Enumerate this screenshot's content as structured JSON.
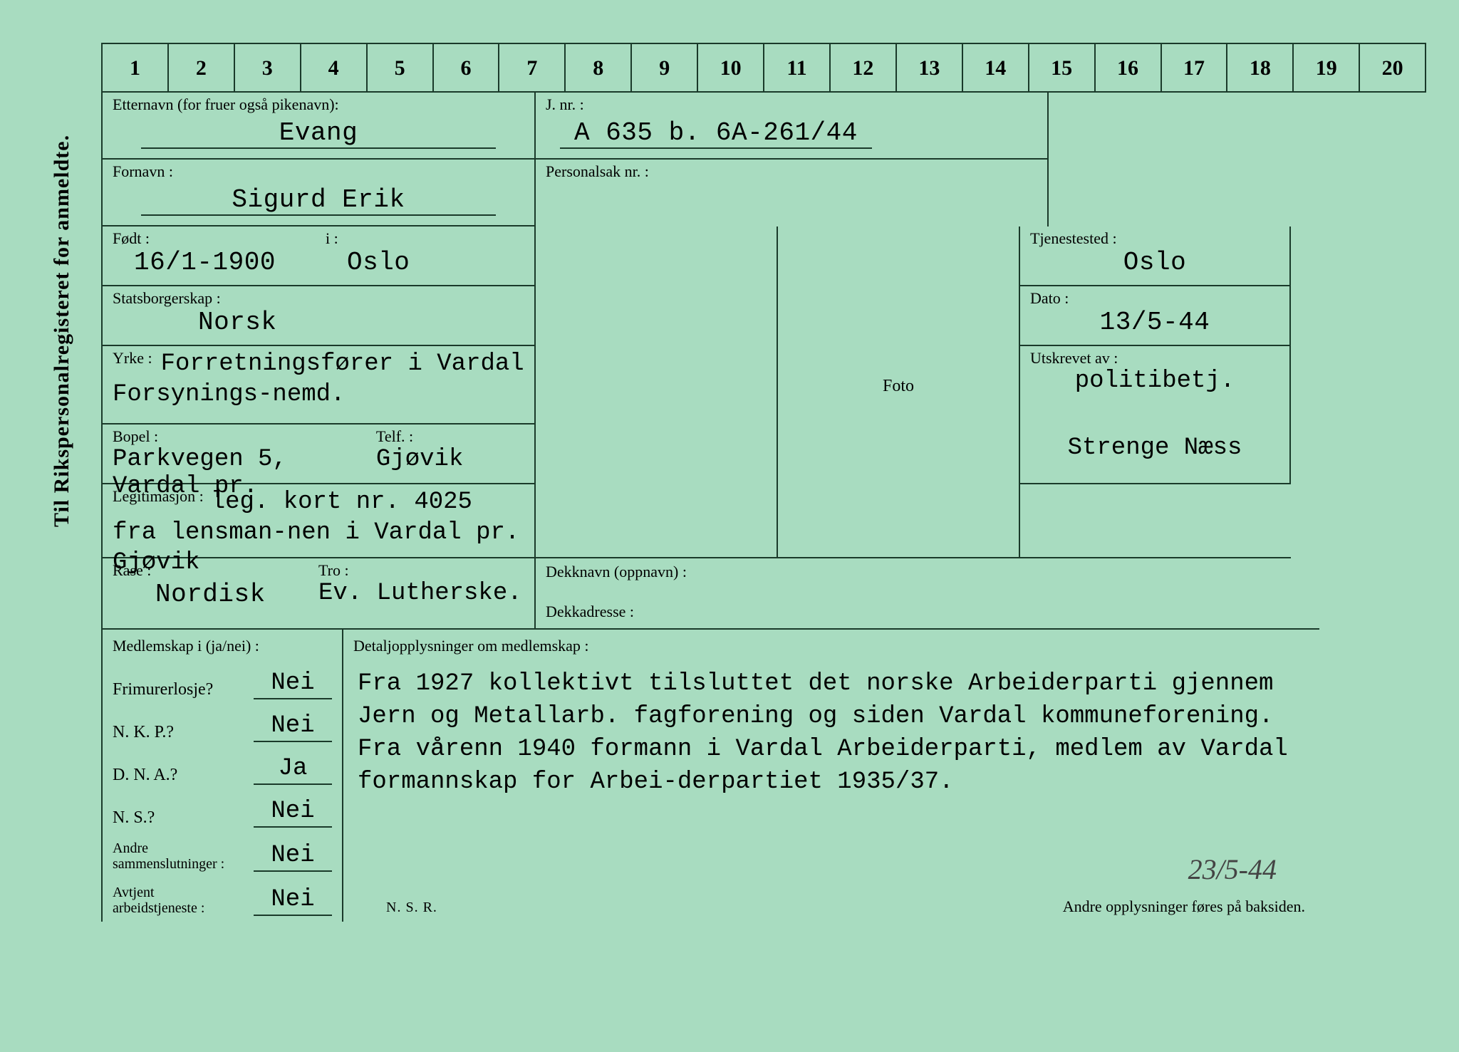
{
  "sideText": "Til Rikspersonalregisteret for anmeldte.",
  "ruler": [
    "1",
    "2",
    "3",
    "4",
    "5",
    "6",
    "7",
    "8",
    "9",
    "10",
    "11",
    "12",
    "13",
    "14",
    "15",
    "16",
    "17",
    "18",
    "19",
    "20"
  ],
  "labels": {
    "etternavn": "Etternavn (for fruer også pikenavn):",
    "fornavn": "Fornavn :",
    "fodt": "Født :",
    "i": "i :",
    "stats": "Statsborgerskap :",
    "yrke": "Yrke :",
    "bopel": "Bopel :",
    "telf": "Telf. :",
    "legit": "Legitimasjon :",
    "rase": "Rase :",
    "tro": "Tro :",
    "jnr": "J. nr. :",
    "personalsak": "Personalsak nr. :",
    "tjenestested": "Tjenestested :",
    "dato": "Dato :",
    "utskrevet": "Utskrevet av :",
    "foto": "Foto",
    "dekknavn": "Dekknavn (oppnavn) :",
    "dekkadresse": "Dekkadresse :",
    "medlemskap": "Medlemskap i (ja/nei) :",
    "detalj": "Detaljopplysninger om medlemskap :",
    "frimurer": "Frimurerlosje?",
    "nkp": "N. K. P.?",
    "dna": "D. N. A.?",
    "ns": "N. S.?",
    "andre": "Andre\nsammenslutninger :",
    "avtjent": "Avtjent\narbeidstjeneste :",
    "nsr": "N. S. R.",
    "footerNote": "Andre opplysninger føres på baksiden."
  },
  "values": {
    "etternavn": "Evang",
    "fornavn": "Sigurd Erik",
    "fodt": "16/1-1900",
    "fodested": "Oslo",
    "stats": "Norsk",
    "yrke": "Forretningsfører i Vardal Forsynings-nemd.",
    "bopel": "Parkvegen 5, Vardal pr.",
    "telf": "Gjøvik",
    "legit": "leg. kort nr. 4025 fra lensman-nen i Vardal pr. Gjøvik",
    "rase": "Nordisk",
    "tro": "Ev. Lutherske.",
    "jnr": "A 635 b. 6A-261/44",
    "personalsak": "",
    "tjenestested": "Oslo",
    "dato": "13/5-44",
    "utskrevet1": "politibetj.",
    "utskrevet2": "Strenge Næss",
    "dekknavn": "",
    "dekkadresse": "",
    "detalj": "Fra 1927 kollektivt tilsluttet det norske Arbeiderparti gjennem Jern og Metallarb. fagforening og siden Vardal kommuneforening. Fra vårenn 1940 formann i Vardal Arbeiderparti, medlem av Vardal formannskap for Arbei-derpartiet 1935/37.",
    "handwrittenDate": "23/5-44"
  },
  "membership": {
    "frimurer": "Nei",
    "nkp": "Nei",
    "dna": "Ja",
    "ns": "Nei",
    "andre": "Nei",
    "avtjent": "Nei"
  },
  "colors": {
    "background": "#a8dcc0",
    "line": "#1a3a2a",
    "text": "#1a1a1a"
  }
}
